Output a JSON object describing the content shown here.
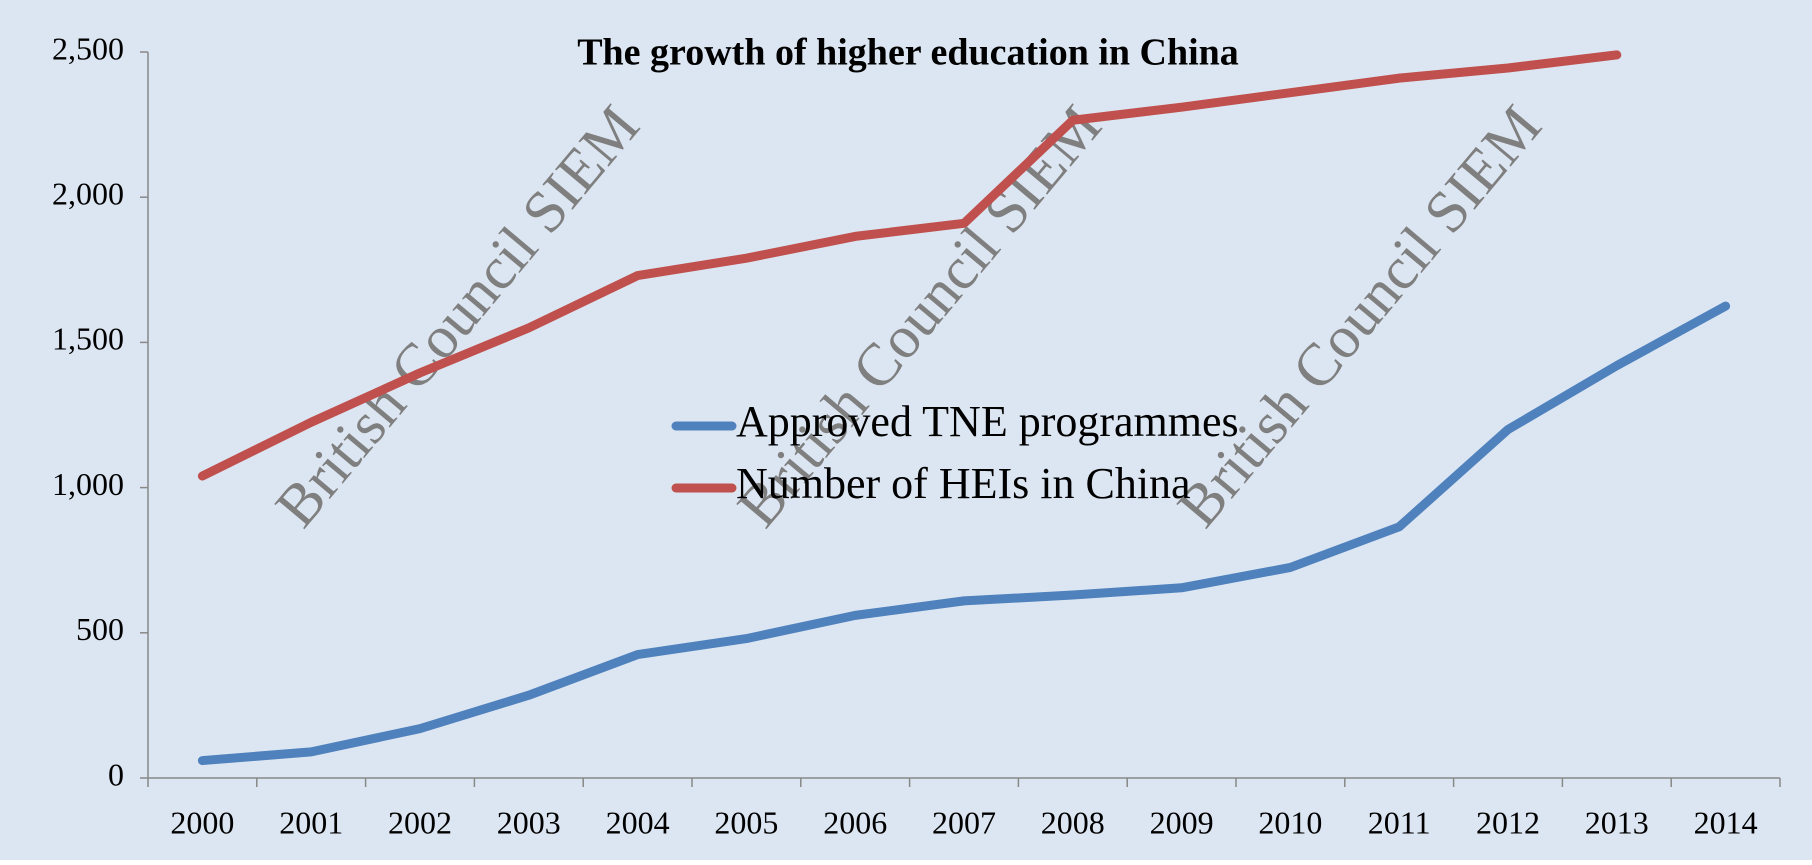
{
  "chart_data": {
    "type": "line",
    "title": "The growth of higher education in China",
    "categories": [
      "2000",
      "2001",
      "2002",
      "2003",
      "2004",
      "2005",
      "2006",
      "2007",
      "2008",
      "2009",
      "2010",
      "2011",
      "2012",
      "2013",
      "2014"
    ],
    "series": [
      {
        "name": "Approved TNE programmes",
        "color": "#4f81bd",
        "values": [
          60,
          90,
          170,
          285,
          425,
          480,
          560,
          610,
          630,
          655,
          725,
          865,
          1200,
          1420,
          1625
        ]
      },
      {
        "name": "Number of HEIs in China",
        "color": "#c0504d",
        "values": [
          1040,
          1225,
          1395,
          1550,
          1730,
          1790,
          1865,
          1910,
          2265,
          2310,
          2360,
          2410,
          2445,
          2490,
          null
        ]
      }
    ],
    "ylim": [
      0,
      2500
    ],
    "yticks": [
      0,
      500,
      {
        "value": 1000,
        "label": "1,000"
      },
      {
        "value": 1500,
        "label": "1,500"
      },
      {
        "value": 2000,
        "label": "2,000"
      },
      {
        "value": 2500,
        "label": "2,500"
      }
    ],
    "grid": false,
    "legend": "center",
    "watermarks": [
      "British Council SIEM",
      "British Council SIEM",
      "British Council SIEM"
    ]
  }
}
